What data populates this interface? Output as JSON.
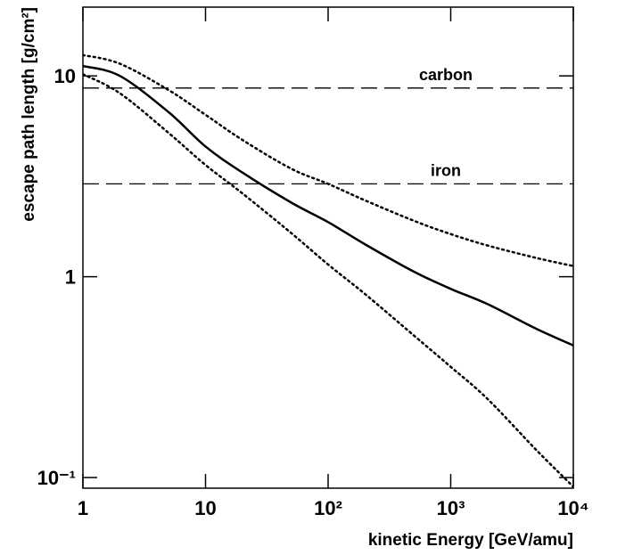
{
  "chart_data": {
    "type": "line",
    "xlabel": "kinetic Energy [GeV/amu]",
    "ylabel": "escape path length [g/cm²]",
    "log_x": true,
    "log_y": true,
    "xlim": [
      1,
      10000
    ],
    "ylim": [
      0.0885,
      22
    ],
    "xticks": [
      1,
      10,
      {
        "value": 100,
        "label": "10²"
      },
      {
        "value": 1000,
        "label": "10³"
      },
      {
        "value": 10000,
        "label": "10⁴"
      }
    ],
    "yticks": [
      {
        "value": 0.1,
        "label": "10⁻¹"
      },
      1,
      10
    ],
    "x": [
      1,
      2,
      5,
      10,
      20,
      50,
      100,
      200,
      500,
      1000,
      2000,
      5000,
      10000
    ],
    "series": [
      {
        "color": "#000000",
        "style": "solid",
        "values": [
          11.2,
          10,
          6.6,
          4.45,
          3.3,
          2.34,
          1.87,
          1.45,
          1.06,
          0.87,
          0.73,
          0.55,
          0.455
        ]
      },
      {
        "color": "#000000",
        "style": "dotted",
        "values": [
          12.7,
          11.5,
          8.5,
          6.4,
          4.8,
          3.45,
          2.9,
          2.4,
          1.9,
          1.63,
          1.43,
          1.24,
          1.13
        ]
      },
      {
        "color": "#000000",
        "style": "dotted",
        "values": [
          10.2,
          8.2,
          5.2,
          3.6,
          2.6,
          1.65,
          1.15,
          0.82,
          0.51,
          0.356,
          0.246,
          0.137,
          0.09
        ]
      }
    ],
    "hlines": [
      {
        "label": "carbon",
        "value": 8.7,
        "style": "dashed"
      },
      {
        "label": "iron",
        "value": 2.9,
        "style": "dashed"
      }
    ]
  }
}
